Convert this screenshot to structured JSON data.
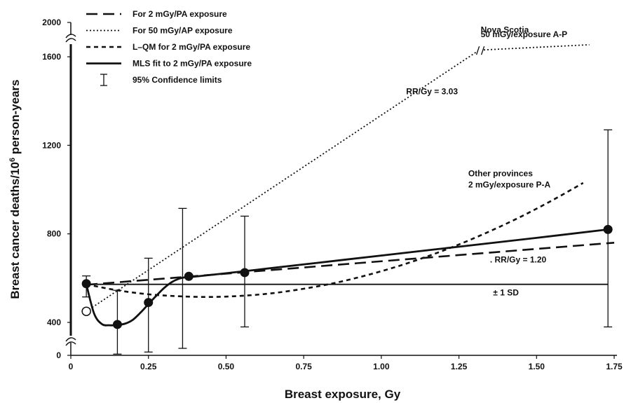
{
  "chart_data": {
    "type": "line",
    "title": "",
    "xlabel": "Breast exposure, Gy",
    "ylabel_main": "Breast cancer deaths/10",
    "ylabel_sup": "6",
    "ylabel_tail": " person-years",
    "xlim": [
      0,
      1.75
    ],
    "x_ticks": [
      0,
      0.25,
      0.5,
      0.75,
      1.0,
      1.25,
      1.5,
      1.75
    ],
    "x_tick_labels": [
      "0",
      "0.25",
      "0.50",
      "0.75",
      "1.00",
      "1.25",
      "1.50",
      "1.75"
    ],
    "y_axis": {
      "break": true,
      "ticks": [
        0,
        400,
        800,
        1200,
        1600,
        2000
      ],
      "tick_labels": [
        "0",
        "400",
        "800",
        "1200",
        "1600",
        "2000"
      ]
    },
    "grid": false,
    "legend_position": "top-left",
    "legend": [
      {
        "label": "For 2 mGy/PA exposure",
        "style": "long-dash"
      },
      {
        "label": "For 50 mGy/AP exposure",
        "style": "dotted"
      },
      {
        "label": "L–QM for 2 mGy/PA exposure",
        "style": "short-dash"
      },
      {
        "label": "MLS fit to 2 mGy/PA exposure",
        "style": "solid"
      },
      {
        "label": "95% Confidence limits",
        "style": "errorbar"
      }
    ],
    "series": [
      {
        "name": "For 2 mGy/PA exposure",
        "style": "long-dash",
        "x": [
          0.05,
          1.75
        ],
        "y": [
          570,
          760
        ]
      },
      {
        "name": "For 50 mGy/AP exposure",
        "style": "dotted",
        "x": [
          0.05,
          1.31,
          1.33,
          1.67
        ],
        "y": [
          450,
          1665,
          1680,
          1740
        ]
      },
      {
        "name": "L–QM for 2 mGy/PA exposure",
        "style": "short-dash",
        "x": [
          0.05,
          0.15,
          0.25,
          0.35,
          0.45,
          0.55,
          0.65,
          0.75,
          0.85,
          0.95,
          1.05,
          1.15,
          1.25,
          1.35,
          1.45,
          1.55,
          1.65
        ],
        "y": [
          572,
          545,
          527,
          518,
          515,
          520,
          532,
          552,
          578,
          612,
          652,
          699,
          752,
          812,
          878,
          951,
          1030
        ]
      },
      {
        "name": "MLS fit to 2 mGy/PA exposure",
        "style": "solid",
        "x": [
          0.05,
          0.075,
          0.1,
          0.125,
          0.15,
          0.175,
          0.2,
          0.225,
          0.25,
          0.275,
          0.3,
          0.325,
          0.35,
          0.375,
          0.4,
          0.5,
          0.6,
          0.8,
          1.0,
          1.25,
          1.5,
          1.73
        ],
        "y": [
          572,
          440,
          380,
          365,
          368,
          385,
          412,
          445,
          483,
          520,
          555,
          582,
          598,
          605,
          607,
          622,
          638,
          670,
          702,
          742,
          782,
          820
        ]
      },
      {
        "name": "± 1 SD",
        "style": "solid-thin",
        "x": [
          0.05,
          1.73
        ],
        "y": [
          572,
          572
        ]
      }
    ],
    "points": [
      {
        "x": 0.05,
        "y": 575,
        "ci": [
          515,
          610
        ],
        "filled": true
      },
      {
        "x": 0.15,
        "y": 375,
        "ci": [
          15,
          545
        ],
        "filled": true
      },
      {
        "x": 0.25,
        "y": 490,
        "ci": [
          40,
          690
        ],
        "filled": true
      },
      {
        "x": 0.36,
        "y": null,
        "ci": [
          85,
          915
        ],
        "filled": null
      },
      {
        "x": 0.38,
        "y": 608,
        "ci": null,
        "filled": true
      },
      {
        "x": 0.56,
        "y": 625,
        "ci": [
          345,
          880
        ],
        "filled": true
      },
      {
        "x": 1.73,
        "y": 820,
        "ci": [
          345,
          1270
        ],
        "filled": true
      },
      {
        "x": 0.05,
        "y": 450,
        "ci": null,
        "filled": false
      }
    ],
    "annotations": [
      {
        "text": "Nova Scotia",
        "x": 1.32,
        "y": 1880
      },
      {
        "text": "50 mGy/exposure A-P",
        "x": 1.32,
        "y": 1830
      },
      {
        "text": "RR/Gy = 3.03",
        "x": 1.08,
        "y": 1430
      },
      {
        "text": "Other provinces",
        "x": 1.28,
        "y": 1060
      },
      {
        "text": "2 mGy/exposure P-A",
        "x": 1.28,
        "y": 1010
      },
      {
        "text": ". RR/Gy = 1.20",
        "x": 1.35,
        "y": 670
      },
      {
        "text": "± 1 SD",
        "x": 1.36,
        "y": 522
      }
    ]
  }
}
